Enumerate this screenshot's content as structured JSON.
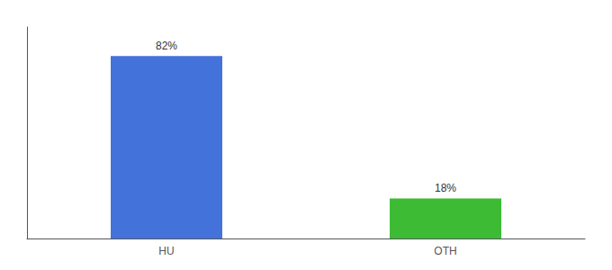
{
  "chart_data": {
    "type": "bar",
    "categories": [
      "HU",
      "OTH"
    ],
    "values": [
      82,
      18
    ],
    "value_labels": [
      "82%",
      "18%"
    ],
    "colors": [
      "#4472db",
      "#3dbb35"
    ],
    "ylim": [
      0,
      95
    ],
    "yticks": [],
    "grid": false,
    "data_labels": true,
    "tick_labels": "x"
  }
}
